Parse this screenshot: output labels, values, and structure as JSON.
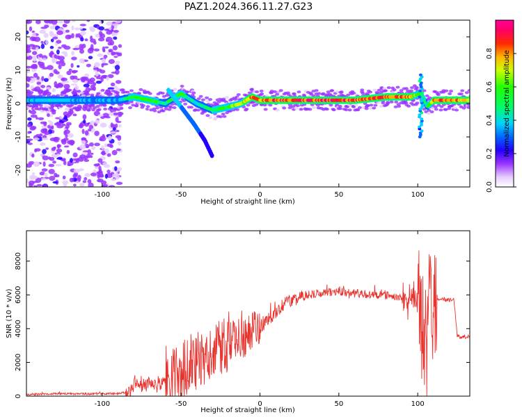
{
  "figure": {
    "title": "PAZ1.2024.366.11.27.G23"
  },
  "chart_data": [
    {
      "type": "heatmap",
      "xlabel": "Height of straight line (km)",
      "ylabel": "Frequency (Hz)",
      "xlim": [
        -148,
        133
      ],
      "ylim": [
        -25,
        25
      ],
      "xticks": [
        -100,
        -50,
        0,
        50,
        100
      ],
      "yticks": [
        -20,
        -10,
        0,
        10,
        20
      ],
      "grid": false,
      "colorbar": {
        "label": "Normalized spectral amplitude",
        "range": [
          0,
          1
        ],
        "ticks": [
          0.0,
          0.2,
          0.4,
          0.6,
          0.8
        ],
        "tick_labels": [
          "0.0",
          "0.2",
          "0.4",
          "0.6",
          "0.8"
        ],
        "colormap": "rainbow (white-violet-blue-cyan-green-yellow-red-magenta)"
      },
      "features": {
        "main_band": {
          "x": [
            -148,
            -90,
            -80,
            -70,
            -60,
            -50,
            -40,
            -30,
            -20,
            -12,
            -5,
            0,
            20,
            40,
            60,
            80,
            95,
            102,
            106,
            110,
            120,
            133
          ],
          "frequency": [
            1,
            1,
            2,
            1,
            0,
            3,
            0,
            -2,
            -1,
            0,
            2,
            1,
            1,
            1,
            1,
            2,
            2,
            3,
            -1,
            1,
            1,
            1
          ],
          "amplitude": [
            0.35,
            0.3,
            0.5,
            0.55,
            0.4,
            0.5,
            0.35,
            0.45,
            0.5,
            0.6,
            0.75,
            0.8,
            0.85,
            0.85,
            0.8,
            0.8,
            0.75,
            0.5,
            0.4,
            0.75,
            0.8,
            0.7
          ]
        },
        "descending_branch": {
          "x": [
            -58,
            -50,
            -42,
            -35,
            -30
          ],
          "frequency": [
            4,
            -1,
            -6,
            -11,
            -16
          ],
          "amplitude": [
            0.35,
            0.3,
            0.25,
            0.2,
            0.15
          ]
        },
        "noise_region_x": [
          -148,
          -88
        ],
        "spike_near_x": 102
      }
    },
    {
      "type": "line",
      "xlabel": "Height of straight line (km)",
      "ylabel": "SNR (10 * v/v)",
      "xlim": [
        -148,
        133
      ],
      "ylim": [
        0,
        9800
      ],
      "xticks": [
        -100,
        -50,
        0,
        50,
        100
      ],
      "yticks": [
        0,
        2000,
        4000,
        6000,
        8000
      ],
      "grid": false,
      "series": [
        {
          "color": "#e8342f",
          "x": [
            -148,
            -130,
            -110,
            -90,
            -82,
            -80,
            -75,
            -70,
            -65,
            -60,
            -55,
            -50,
            -45,
            -40,
            -35,
            -30,
            -25,
            -20,
            -15,
            -10,
            -5,
            0,
            5,
            10,
            15,
            20,
            25,
            30,
            40,
            50,
            60,
            70,
            80,
            90,
            95,
            100,
            103,
            105,
            107,
            109,
            112,
            115,
            120,
            123,
            125,
            133
          ],
          "y": [
            100,
            150,
            130,
            150,
            250,
            900,
            500,
            700,
            600,
            900,
            1200,
            1500,
            1800,
            2200,
            2500,
            2700,
            3000,
            3200,
            3500,
            3400,
            3800,
            4100,
            4500,
            5000,
            5400,
            5700,
            5900,
            6000,
            6100,
            6200,
            6100,
            6000,
            5950,
            5900,
            5800,
            5600,
            4000,
            1500,
            6000,
            5000,
            5800,
            5750,
            5700,
            5700,
            3550,
            3500
          ],
          "noise_envelope": [
            {
              "x_range": [
                -85,
                -60
              ],
              "amplitude": 400
            },
            {
              "x_range": [
                -60,
                -20
              ],
              "amplitude": 1800
            },
            {
              "x_range": [
                -20,
                0
              ],
              "amplitude": 1200
            },
            {
              "x_range": [
                0,
                30
              ],
              "amplitude": 400
            },
            {
              "x_range": [
                30,
                90
              ],
              "amplitude": 250
            },
            {
              "x_range": [
                90,
                100
              ],
              "amplitude": 900
            },
            {
              "x_range": [
                100,
                112
              ],
              "amplitude": 3500
            },
            {
              "x_range": [
                112,
                133
              ],
              "amplitude": 120
            }
          ]
        }
      ]
    }
  ]
}
